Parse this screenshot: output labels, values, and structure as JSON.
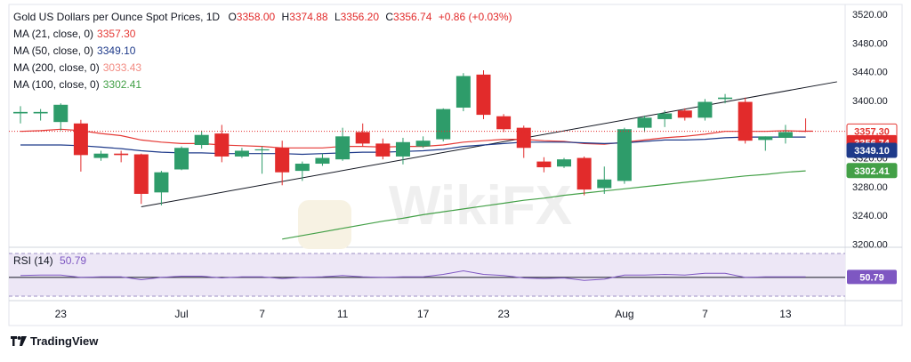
{
  "header": {
    "title": "Gold US Dollars per Ounce Spot Prices, 1D",
    "o_label": "O",
    "o_value": "3358.00",
    "h_label": "H",
    "h_value": "3374.88",
    "l_label": "L",
    "l_value": "3356.20",
    "c_label": "C",
    "c_value": "3356.74",
    "change": "+0.86 (+0.03%)"
  },
  "indicators": [
    {
      "label": "MA (21, close, 0)",
      "value": "3357.30",
      "color": "#e53935"
    },
    {
      "label": "MA (50, close, 0)",
      "value": "3349.10",
      "color": "#1e3a8a"
    },
    {
      "label": "MA (200, close, 0)",
      "value": "3033.43",
      "color": "#f28b82"
    },
    {
      "label": "MA (100, close, 0)",
      "value": "3302.41",
      "color": "#43a047"
    }
  ],
  "rsi": {
    "label": "RSI (14)",
    "value": "50.79"
  },
  "branding": "TradingView",
  "watermark": "WikiFX",
  "colors": {
    "up": "#2e9c6a",
    "down": "#e22b2b",
    "ma21": "#e53935",
    "ma50": "#1e3a8a",
    "ma100": "#43a047",
    "trend": "#131722",
    "rsi": "#7e57c2",
    "rsi_band": "#ede7f6"
  },
  "chart_data": {
    "type": "candlestick",
    "price_axis_ticks": [
      3520,
      3480,
      3440,
      3400,
      3360,
      3320,
      3280,
      3240,
      3200
    ],
    "price_axis_labels": [
      "3520.00",
      "3480.00",
      "3440.00",
      "3400.00",
      "3360.00",
      "3320.00",
      "3280.00",
      "3240.00",
      "3200.00"
    ],
    "x_tick_labels": [
      "23",
      "Jul",
      "7",
      "11",
      "17",
      "23",
      "Aug",
      "7",
      "13"
    ],
    "x_tick_candle_index": [
      2,
      8,
      12,
      16,
      20,
      24,
      30,
      34,
      38
    ],
    "candles": [
      {
        "o": 3382,
        "h": 3392,
        "l": 3368,
        "c": 3384
      },
      {
        "o": 3382,
        "h": 3388,
        "l": 3372,
        "c": 3384
      },
      {
        "o": 3370,
        "h": 3396,
        "l": 3358,
        "c": 3394
      },
      {
        "o": 3368,
        "h": 3373,
        "l": 3301,
        "c": 3324
      },
      {
        "o": 3320,
        "h": 3330,
        "l": 3316,
        "c": 3326
      },
      {
        "o": 3326,
        "h": 3330,
        "l": 3314,
        "c": 3324
      },
      {
        "o": 3325,
        "h": 3326,
        "l": 3256,
        "c": 3270
      },
      {
        "o": 3272,
        "h": 3302,
        "l": 3254,
        "c": 3300
      },
      {
        "o": 3304,
        "h": 3336,
        "l": 3303,
        "c": 3334
      },
      {
        "o": 3338,
        "h": 3358,
        "l": 3333,
        "c": 3352
      },
      {
        "o": 3354,
        "h": 3366,
        "l": 3314,
        "c": 3322
      },
      {
        "o": 3322,
        "h": 3334,
        "l": 3320,
        "c": 3330
      },
      {
        "o": 3332,
        "h": 3336,
        "l": 3298,
        "c": 3332
      },
      {
        "o": 3334,
        "h": 3344,
        "l": 3282,
        "c": 3300
      },
      {
        "o": 3302,
        "h": 3315,
        "l": 3288,
        "c": 3312
      },
      {
        "o": 3312,
        "h": 3326,
        "l": 3309,
        "c": 3320
      },
      {
        "o": 3318,
        "h": 3362,
        "l": 3316,
        "c": 3350
      },
      {
        "o": 3356,
        "h": 3368,
        "l": 3336,
        "c": 3340
      },
      {
        "o": 3340,
        "h": 3347,
        "l": 3318,
        "c": 3322
      },
      {
        "o": 3322,
        "h": 3348,
        "l": 3311,
        "c": 3342
      },
      {
        "o": 3336,
        "h": 3350,
        "l": 3334,
        "c": 3344
      },
      {
        "o": 3346,
        "h": 3389,
        "l": 3343,
        "c": 3388
      },
      {
        "o": 3390,
        "h": 3438,
        "l": 3385,
        "c": 3434
      },
      {
        "o": 3436,
        "h": 3442,
        "l": 3374,
        "c": 3380
      },
      {
        "o": 3378,
        "h": 3381,
        "l": 3356,
        "c": 3360
      },
      {
        "o": 3362,
        "h": 3365,
        "l": 3320,
        "c": 3334
      },
      {
        "o": 3315,
        "h": 3321,
        "l": 3300,
        "c": 3307
      },
      {
        "o": 3308,
        "h": 3320,
        "l": 3306,
        "c": 3318
      },
      {
        "o": 3320,
        "h": 3322,
        "l": 3268,
        "c": 3276
      },
      {
        "o": 3278,
        "h": 3308,
        "l": 3270,
        "c": 3290
      },
      {
        "o": 3288,
        "h": 3362,
        "l": 3284,
        "c": 3360
      },
      {
        "o": 3362,
        "h": 3379,
        "l": 3356,
        "c": 3376
      },
      {
        "o": 3374,
        "h": 3386,
        "l": 3363,
        "c": 3382
      },
      {
        "o": 3386,
        "h": 3389,
        "l": 3372,
        "c": 3376
      },
      {
        "o": 3376,
        "h": 3402,
        "l": 3372,
        "c": 3398
      },
      {
        "o": 3402,
        "h": 3409,
        "l": 3396,
        "c": 3404
      },
      {
        "o": 3398,
        "h": 3404,
        "l": 3340,
        "c": 3344
      },
      {
        "o": 3345,
        "h": 3350,
        "l": 3330,
        "c": 3350
      },
      {
        "o": 3348,
        "h": 3366,
        "l": 3340,
        "c": 3356
      },
      {
        "o": 3358,
        "h": 3375,
        "l": 3356,
        "c": 3357
      }
    ],
    "series": [
      {
        "name": "MA (21, close, 0)",
        "values": [
          3357,
          3358,
          3360,
          3358,
          3354,
          3351,
          3345,
          3342,
          3340,
          3340,
          3338,
          3337,
          3336,
          3334,
          3334,
          3334,
          3336,
          3336,
          3335,
          3336,
          3336,
          3338,
          3342,
          3344,
          3346,
          3346,
          3344,
          3343,
          3340,
          3339,
          3342,
          3345,
          3348,
          3350,
          3353,
          3357,
          3357,
          3357,
          3358,
          3357
        ]
      },
      {
        "name": "MA (50, close, 0)",
        "values": [
          3338,
          3338,
          3338,
          3337,
          3335,
          3333,
          3330,
          3328,
          3327,
          3327,
          3326,
          3326,
          3326,
          3326,
          3325,
          3326,
          3327,
          3328,
          3328,
          3329,
          3330,
          3332,
          3336,
          3338,
          3340,
          3342,
          3342,
          3342,
          3341,
          3340,
          3341,
          3343,
          3345,
          3345,
          3346,
          3348,
          3349,
          3349,
          3349,
          3349
        ]
      },
      {
        "name": "MA (100, close, 0)",
        "values": [
          null,
          null,
          null,
          null,
          null,
          null,
          null,
          null,
          null,
          null,
          null,
          null,
          null,
          3207,
          3212,
          3217,
          3222,
          3227,
          3232,
          3236,
          3241,
          3245,
          3249,
          3253,
          3257,
          3261,
          3264,
          3268,
          3271,
          3274,
          3277,
          3280,
          3283,
          3286,
          3289,
          3292,
          3295,
          3297,
          3300,
          3302
        ]
      }
    ],
    "trendline": {
      "from": {
        "index": 6,
        "value": 3252
      },
      "to": {
        "index": 41,
        "value": 3426
      }
    },
    "rsi": {
      "name": "RSI (14)",
      "values": [
        53,
        54,
        54,
        50,
        51,
        51,
        46,
        50,
        52,
        52,
        49,
        51,
        51,
        48,
        50,
        51,
        53,
        51,
        50,
        51,
        51,
        55,
        61,
        55,
        53,
        49,
        48,
        49,
        45,
        47,
        54,
        54,
        55,
        54,
        57,
        57,
        50,
        51,
        50.8,
        50.79
      ],
      "levels": [
        70,
        30
      ]
    }
  }
}
